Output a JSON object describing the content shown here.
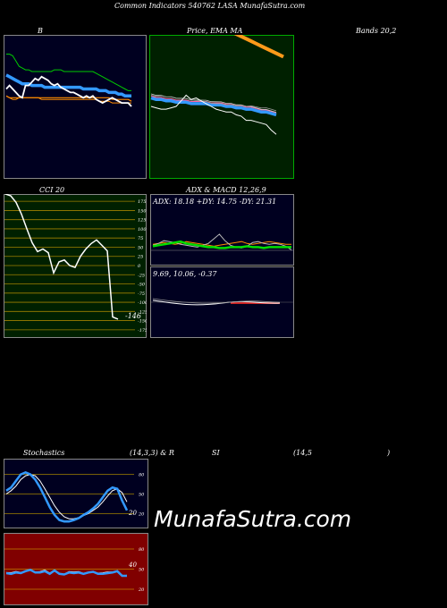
{
  "header": {
    "title": "Common Indicators 540762 LASA MunafaSutra.com",
    "label_b": "B",
    "label_price": "Price,  EMA  MA",
    "label_bands": "Bands 20,2",
    "label_cci": "CCI 20",
    "label_adx": "ADX  & MACD 12,26,9",
    "label_stoch": "Stochastics",
    "label_stoch_params": "(14,3,3) & R",
    "label_rsi": "SI",
    "label_rsi_params": "(14,5",
    "label_close_paren": ")"
  },
  "watermark": "MunafaSutra.com",
  "colors": {
    "bg": "#000000",
    "navy": "#000020",
    "green_bg": "#002000",
    "red_bg": "#800000",
    "blue": "#3399ff",
    "orange": "#ff8c00",
    "green": "#00cc00"
  },
  "chart_data": [
    {
      "id": "bollinger",
      "type": "line",
      "x": [
        1,
        2,
        3,
        4,
        5,
        6,
        7,
        8,
        9,
        10,
        11,
        12,
        13,
        14,
        15,
        16,
        17,
        18,
        19,
        20,
        21,
        22,
        23,
        24,
        25,
        26,
        27,
        28,
        29,
        30,
        31,
        32,
        33,
        34,
        35,
        36,
        37,
        38,
        39,
        40
      ],
      "series": [
        {
          "role": "upper",
          "values": [
            70,
            70,
            69,
            66,
            63,
            62,
            61,
            61,
            60,
            60,
            60,
            60,
            60,
            60,
            60,
            61,
            61,
            61,
            60,
            60,
            60,
            60,
            60,
            60,
            60,
            60,
            60,
            60,
            59,
            58,
            57,
            56,
            55,
            54,
            53,
            52,
            51,
            50,
            49,
            49
          ]
        },
        {
          "role": "middle",
          "values": [
            58,
            57,
            56,
            55,
            54,
            53,
            53,
            53,
            52,
            52,
            52,
            52,
            51,
            51,
            51,
            51,
            51,
            51,
            51,
            51,
            51,
            51,
            51,
            51,
            50,
            50,
            50,
            50,
            50,
            49,
            49,
            49,
            48,
            48,
            48,
            47,
            47,
            46,
            46,
            46
          ]
        },
        {
          "role": "lower",
          "values": [
            46,
            45,
            44,
            44,
            45,
            45,
            45,
            45,
            45,
            45,
            45,
            44,
            44,
            44,
            44,
            44,
            44,
            44,
            44,
            44,
            44,
            44,
            44,
            44,
            44,
            44,
            44,
            44,
            44,
            43,
            43,
            43,
            43,
            42,
            42,
            42,
            42,
            42,
            42,
            42
          ]
        },
        {
          "role": "price",
          "values": [
            50,
            52,
            50,
            48,
            46,
            45,
            52,
            52,
            54,
            56,
            55,
            57,
            56,
            55,
            53,
            52,
            53,
            51,
            50,
            49,
            48,
            48,
            47,
            46,
            45,
            46,
            45,
            46,
            44,
            43,
            42,
            43,
            44,
            45,
            44,
            43,
            42,
            42,
            42,
            40
          ]
        },
        {
          "role": "ema",
          "values": [
            46,
            45,
            45,
            45,
            45,
            45,
            45,
            45,
            45,
            45,
            45,
            45,
            45,
            45,
            45,
            45,
            45,
            45,
            45,
            45,
            45,
            45,
            45,
            45,
            45,
            45,
            45,
            45,
            45,
            45,
            45,
            45,
            45,
            44,
            44,
            44,
            44,
            44,
            44,
            43
          ]
        }
      ],
      "ylim": [
        0,
        80
      ]
    },
    {
      "id": "price_ema_ma",
      "type": "line",
      "series": [
        {
          "role": "ma_long",
          "values": [
            100,
            99,
            98,
            97,
            96,
            95,
            94,
            93,
            92,
            91,
            90,
            89,
            88,
            87,
            86,
            85,
            84,
            83,
            82,
            81,
            80,
            79,
            78,
            77,
            76,
            75
          ]
        },
        {
          "role": "ema_blue",
          "values": [
            56,
            55,
            55,
            54,
            54,
            53,
            53,
            53,
            52,
            52,
            52,
            52,
            51,
            51,
            51,
            50,
            50,
            49,
            49,
            48,
            48,
            47,
            46,
            46,
            45,
            44
          ]
        },
        {
          "role": "price",
          "values": [
            50,
            49,
            48,
            48,
            49,
            50,
            54,
            58,
            55,
            56,
            54,
            52,
            50,
            48,
            47,
            46,
            46,
            44,
            43,
            40,
            40,
            39,
            38,
            37,
            33,
            30
          ]
        }
      ],
      "ylim": [
        0,
        100
      ]
    },
    {
      "id": "cci",
      "type": "line",
      "ticks": [
        175,
        150,
        125,
        100,
        75,
        50,
        25,
        0,
        -25,
        -50,
        -75,
        -100,
        -125,
        -150,
        -175
      ],
      "ylim": [
        -190,
        190
      ],
      "values": [
        195,
        190,
        172,
        140,
        100,
        62,
        38,
        45,
        35,
        -20,
        10,
        15,
        0,
        -5,
        25,
        45,
        60,
        70,
        55,
        40,
        -140,
        -146
      ],
      "last_label": "-146"
    },
    {
      "id": "adx",
      "type": "line",
      "label": "ADX: 18.18  +DY: 14.75  -DY: 21.31",
      "adx": 18.18,
      "plus_dy": 14.75,
      "minus_dy": 21.31,
      "ylim": [
        0,
        60
      ],
      "series": [
        {
          "role": "adx",
          "values": [
            19,
            20,
            21,
            22,
            23,
            24,
            22,
            21,
            20,
            19,
            18,
            18,
            17,
            17,
            18,
            18,
            18,
            19,
            18,
            18,
            17,
            18,
            18,
            18,
            18,
            18
          ]
        },
        {
          "role": "plus_dy",
          "values": [
            20,
            22,
            25,
            24,
            23,
            21,
            20,
            19,
            18,
            20,
            22,
            27,
            32,
            25,
            20,
            18,
            17,
            19,
            23,
            24,
            22,
            21,
            22,
            21,
            19,
            15
          ]
        },
        {
          "role": "minus_dy",
          "values": [
            21,
            22,
            23,
            22,
            21,
            22,
            24,
            23,
            22,
            21,
            20,
            19,
            20,
            21,
            22,
            23,
            24,
            22,
            21,
            22,
            23,
            24,
            23,
            22,
            21,
            21
          ]
        }
      ]
    },
    {
      "id": "macd",
      "type": "line",
      "label": "9.69,  10.06,  -0.37",
      "macd": 9.69,
      "signal": 10.06,
      "histogram": -0.37
    },
    {
      "id": "stochastics",
      "type": "line",
      "ticks": [
        80,
        50,
        20
      ],
      "ylim": [
        0,
        100
      ],
      "series": [
        {
          "role": "k",
          "values": [
            55,
            60,
            70,
            80,
            83,
            80,
            72,
            60,
            45,
            30,
            18,
            10,
            8,
            8,
            10,
            13,
            18,
            22,
            28,
            35,
            45,
            55,
            60,
            58,
            40,
            25
          ]
        },
        {
          "role": "d",
          "values": [
            50,
            55,
            62,
            72,
            78,
            80,
            78,
            70,
            58,
            45,
            32,
            22,
            15,
            12,
            12,
            14,
            17,
            20,
            25,
            30,
            38,
            47,
            55,
            58,
            52,
            38
          ]
        }
      ],
      "last_label": "20"
    },
    {
      "id": "rsi",
      "type": "line",
      "ticks": [
        80,
        50,
        20
      ],
      "ylim": [
        0,
        100
      ],
      "values": [
        44,
        43,
        45,
        44,
        47,
        49,
        45,
        45,
        47,
        43,
        48,
        43,
        42,
        45,
        44,
        45,
        43,
        45,
        46,
        43,
        43,
        44,
        45,
        47,
        40,
        40
      ],
      "last_label": "40"
    }
  ]
}
